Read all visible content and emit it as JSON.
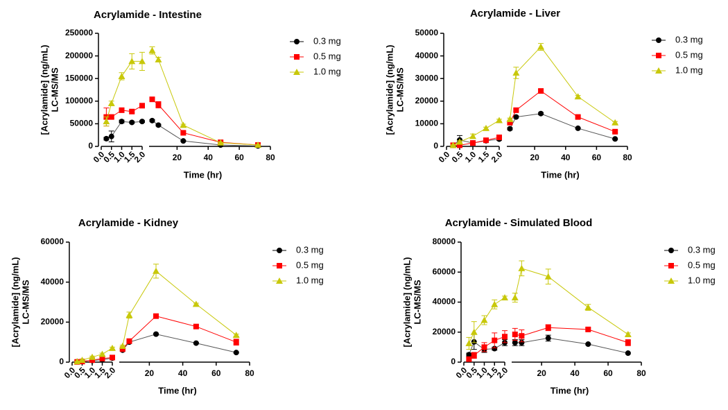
{
  "chart_data": [
    {
      "type": "line",
      "title": "Acrylamide - Intestine",
      "xlabel": "Time (hr)",
      "ylabel": [
        "[Acrylamide] (ng/mL)",
        "LC-MS/MS"
      ],
      "ylim": [
        0,
        250000
      ],
      "yticks": [
        0,
        50000,
        100000,
        150000,
        200000,
        250000
      ],
      "x_segments": [
        {
          "xlim": [
            0,
            2
          ],
          "xticks": [
            {
              "value": 0,
              "label": "0.0"
            },
            {
              "value": 0.5,
              "label": "0.5"
            },
            {
              "value": 1,
              "label": "1.0"
            },
            {
              "value": 1.5,
              "label": "1.5"
            },
            {
              "value": 2,
              "label": "2.0"
            }
          ]
        },
        {
          "xlim": [
            2,
            80
          ],
          "xticks": [
            20,
            40,
            60,
            80
          ]
        }
      ],
      "x": [
        0.25,
        0.5,
        1,
        1.5,
        2,
        4,
        8,
        24,
        48,
        72
      ],
      "series": [
        {
          "name": "0.3 mg",
          "color": "#000000",
          "marker": "circle",
          "values": [
            17000,
            22000,
            55000,
            53000,
            55000,
            57000,
            47000,
            12000,
            3000,
            1000
          ],
          "errors": [
            3000,
            12000,
            3000,
            2000,
            2000,
            2000,
            2000,
            1000,
            500,
            300
          ]
        },
        {
          "name": "0.5 mg",
          "color": "#ff0000",
          "marker": "square",
          "values": [
            65000,
            65000,
            80000,
            77000,
            90000,
            104000,
            92000,
            30000,
            9000,
            3000
          ],
          "errors": [
            20000,
            3000,
            3000,
            3000,
            3000,
            3000,
            7000,
            2000,
            1000,
            500
          ]
        },
        {
          "name": "1.0 mg",
          "color": "#c8c80a",
          "marker": "triangle",
          "values": [
            55000,
            95000,
            155000,
            188000,
            188000,
            212000,
            192000,
            47000,
            8000,
            3000
          ],
          "errors": [
            10000,
            5000,
            8000,
            17000,
            20000,
            8000,
            5000,
            2000,
            1000,
            500
          ]
        }
      ]
    },
    {
      "type": "line",
      "title": "Acrylamide - Liver",
      "xlabel": "Time (hr)",
      "ylabel": [
        "[Acrylamide] (ng/mL)",
        "LC-MS/MS"
      ],
      "ylim": [
        0,
        50000
      ],
      "yticks": [
        0,
        10000,
        20000,
        30000,
        40000,
        50000
      ],
      "x_segments": [
        {
          "xlim": [
            0,
            2
          ],
          "xticks": [
            {
              "value": 0,
              "label": "0.0"
            },
            {
              "value": 0.5,
              "label": "0.5"
            },
            {
              "value": 1,
              "label": "1.0"
            },
            {
              "value": 1.5,
              "label": "1.5"
            },
            {
              "value": 2,
              "label": "2.0"
            }
          ]
        },
        {
          "xlim": [
            2,
            80
          ],
          "xticks": [
            20,
            40,
            60,
            80
          ]
        }
      ],
      "x": [
        0.25,
        0.5,
        1,
        1.5,
        2,
        4,
        8,
        24,
        48,
        72
      ],
      "series": [
        {
          "name": "0.3 mg",
          "color": "#000000",
          "marker": "circle",
          "values": [
            500,
            2800,
            1500,
            2500,
            3200,
            7800,
            13000,
            14500,
            8000,
            3300
          ],
          "errors": [
            300,
            2000,
            1000,
            500,
            500,
            500,
            500,
            500,
            300,
            300
          ]
        },
        {
          "name": "0.5 mg",
          "color": "#ff0000",
          "marker": "square",
          "values": [
            500,
            500,
            1500,
            2700,
            4000,
            10500,
            16000,
            24500,
            13000,
            6500
          ],
          "errors": [
            200,
            300,
            300,
            300,
            300,
            500,
            500,
            500,
            500,
            500
          ]
        },
        {
          "name": "1.0 mg",
          "color": "#c8c80a",
          "marker": "triangle",
          "values": [
            500,
            2000,
            4500,
            8000,
            11500,
            12000,
            32500,
            44000,
            22000,
            10500
          ],
          "errors": [
            200,
            500,
            1000,
            500,
            500,
            500,
            2500,
            1500,
            500,
            500
          ]
        }
      ]
    },
    {
      "type": "line",
      "title": "Acrylamide - Kidney",
      "xlabel": "Time (hr)",
      "ylabel": [
        "[Acrylamide] (ng/mL)",
        "LC-MS/MS"
      ],
      "ylim": [
        0,
        60000
      ],
      "yticks": [
        0,
        20000,
        40000,
        60000
      ],
      "x_segments": [
        {
          "xlim": [
            0,
            2
          ],
          "xticks": [
            {
              "value": 0,
              "label": "0.0"
            },
            {
              "value": 0.5,
              "label": "0.5"
            },
            {
              "value": 1,
              "label": "1.0"
            },
            {
              "value": 1.5,
              "label": "1.5"
            },
            {
              "value": 2,
              "label": "2.0"
            }
          ]
        },
        {
          "xlim": [
            2,
            80
          ],
          "xticks": [
            20,
            40,
            60,
            80
          ]
        }
      ],
      "x": [
        0.25,
        0.5,
        1,
        1.5,
        2,
        4,
        8,
        24,
        48,
        72
      ],
      "series": [
        {
          "name": "0.3 mg",
          "color": "#000000",
          "marker": "circle",
          "values": [
            200,
            500,
            800,
            1200,
            2000,
            6000,
            10000,
            14000,
            9500,
            4800
          ],
          "errors": [
            100,
            200,
            300,
            300,
            300,
            500,
            500,
            500,
            400,
            300
          ]
        },
        {
          "name": "0.5 mg",
          "color": "#ff0000",
          "marker": "square",
          "values": [
            100,
            300,
            1000,
            1800,
            2300,
            6500,
            10500,
            23000,
            17800,
            10000
          ],
          "errors": [
            100,
            200,
            300,
            500,
            500,
            500,
            500,
            500,
            800,
            1500
          ]
        },
        {
          "name": "1.0 mg",
          "color": "#c8c80a",
          "marker": "triangle",
          "values": [
            300,
            1000,
            2500,
            4000,
            7000,
            8000,
            23500,
            45500,
            29000,
            13500
          ],
          "errors": [
            100,
            300,
            500,
            500,
            500,
            500,
            1500,
            3500,
            500,
            500
          ]
        }
      ]
    },
    {
      "type": "line",
      "title": "Acrylamide - Simulated Blood",
      "xlabel": "Time (hr)",
      "ylabel": [
        "[Acrylamide] (ng/mL)",
        "LC-MS/MS"
      ],
      "ylim": [
        0,
        80000
      ],
      "yticks": [
        0,
        20000,
        40000,
        60000,
        80000
      ],
      "x_segments": [
        {
          "xlim": [
            0,
            2
          ],
          "xticks": [
            {
              "value": 0,
              "label": "0.0"
            },
            {
              "value": 0.5,
              "label": "0.5"
            },
            {
              "value": 1,
              "label": "1.0"
            },
            {
              "value": 1.5,
              "label": "1.5"
            },
            {
              "value": 2,
              "label": "2.0"
            }
          ]
        },
        {
          "xlim": [
            2,
            80
          ],
          "xticks": [
            20,
            40,
            60,
            80
          ]
        }
      ],
      "x": [
        0.25,
        0.5,
        1,
        1.5,
        2,
        4,
        8,
        24,
        48,
        72
      ],
      "series": [
        {
          "name": "0.3 mg",
          "color": "#000000",
          "marker": "circle",
          "values": [
            5000,
            13500,
            8500,
            9000,
            13000,
            13000,
            13000,
            16000,
            12000,
            6000
          ],
          "errors": [
            1000,
            5000,
            2000,
            1000,
            2000,
            2000,
            2000,
            2000,
            500,
            500
          ]
        },
        {
          "name": "0.5 mg",
          "color": "#ff0000",
          "marker": "square",
          "values": [
            2000,
            4500,
            10000,
            14500,
            17000,
            18500,
            17500,
            23000,
            21800,
            13000
          ],
          "errors": [
            1000,
            2000,
            3000,
            5000,
            4000,
            4000,
            4000,
            2000,
            1000,
            2000
          ]
        },
        {
          "name": "1.0 mg",
          "color": "#c8c80a",
          "marker": "triangle",
          "values": [
            12500,
            20000,
            28000,
            38500,
            43000,
            43000,
            62500,
            57000,
            36500,
            18500
          ],
          "errors": [
            4000,
            7000,
            3000,
            3000,
            1000,
            3000,
            5000,
            5000,
            2000,
            1000
          ]
        }
      ]
    }
  ]
}
